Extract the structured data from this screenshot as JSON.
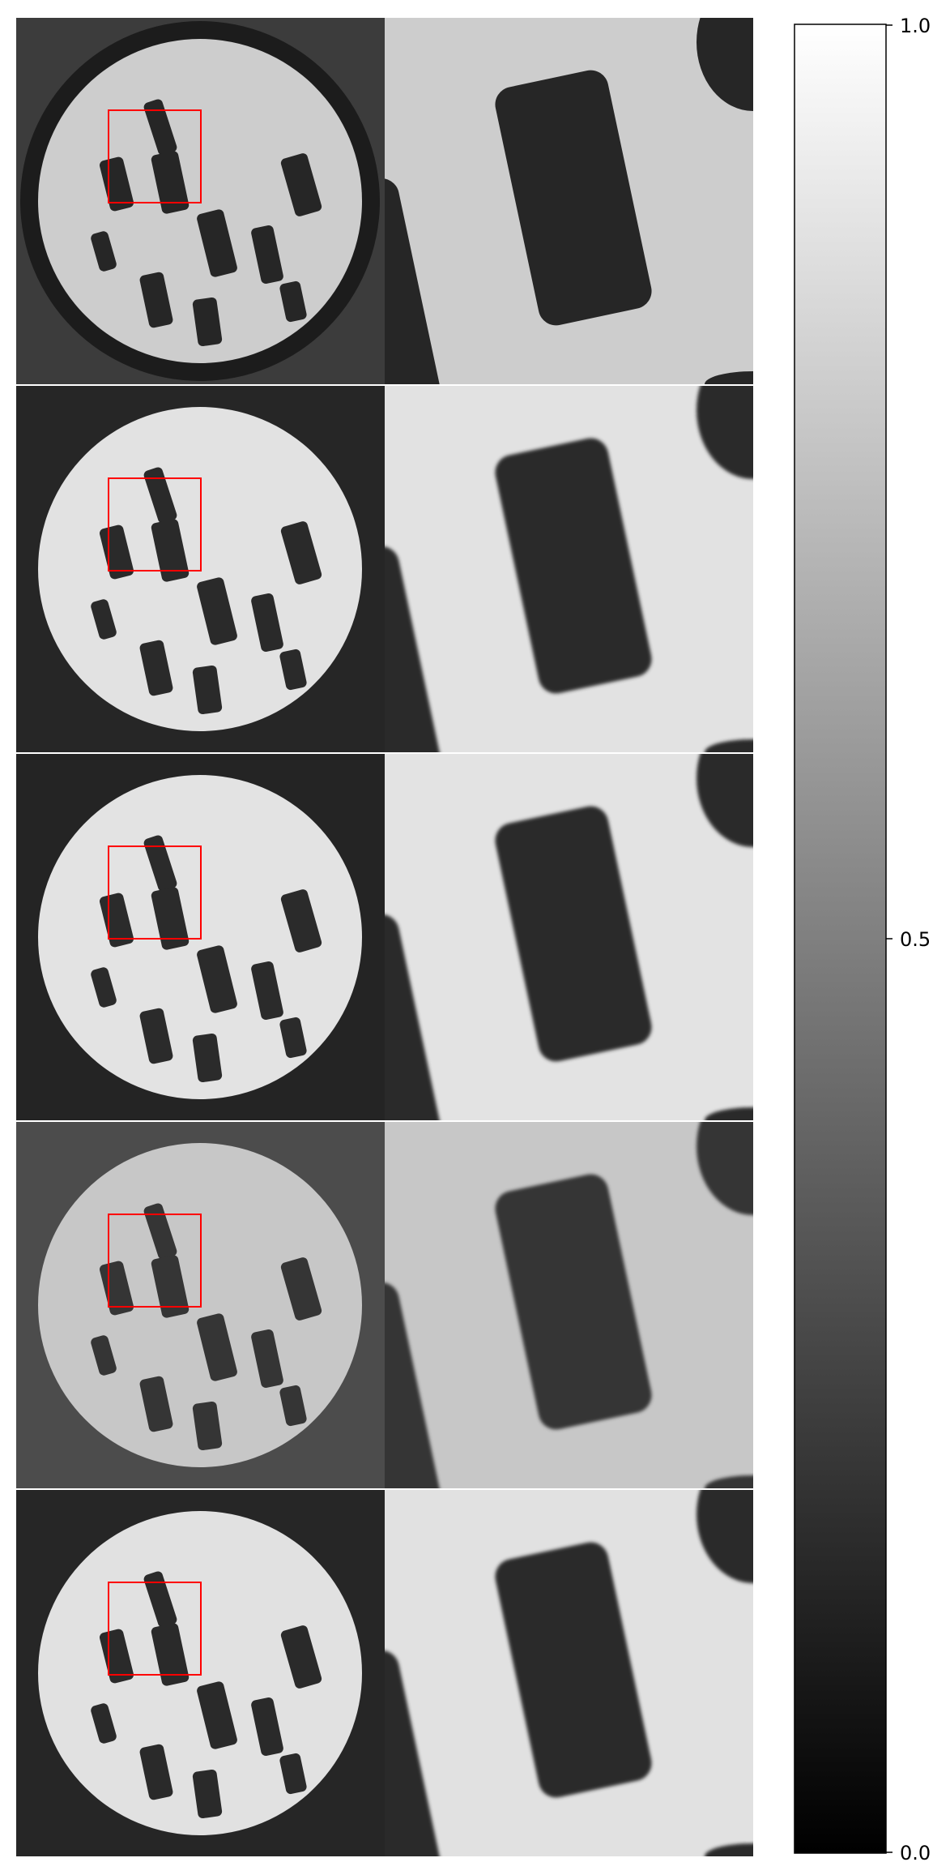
{
  "figure": {
    "panel_count": 5,
    "columns": [
      "full-slice",
      "zoomed-roi"
    ],
    "roi_box_color": "#ff0000",
    "panel_backgrounds": [
      "#3c3c3c",
      "#262626",
      "#242424",
      "#4c4c4c",
      "#262626"
    ],
    "disk_fill": [
      "#cdcdcd",
      "#e2e2e2",
      "#e3e3e3",
      "#c7c7c7",
      "#e1e1e1"
    ],
    "insert_fill": [
      "#262626",
      "#2a2a2a",
      "#2b2b2b",
      "#353535",
      "#2a2a2a"
    ]
  },
  "colorbar": {
    "colormap": "gray",
    "min": 0.0,
    "max": 1.0,
    "tick_labels": [
      "0.0",
      "0.5",
      "1.0"
    ]
  }
}
